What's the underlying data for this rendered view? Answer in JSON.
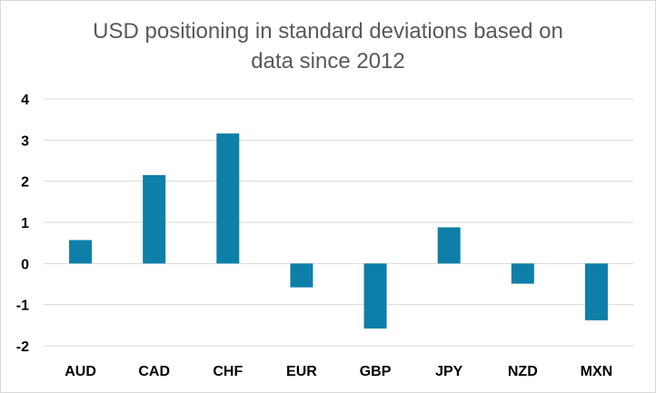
{
  "chart_data": {
    "type": "bar",
    "title_lines": [
      "USD positioning in standard deviations based on",
      "data since 2012"
    ],
    "categories": [
      "AUD",
      "CAD",
      "CHF",
      "EUR",
      "GBP",
      "JPY",
      "NZD",
      "MXN"
    ],
    "values": [
      0.57,
      2.15,
      3.16,
      -0.58,
      -1.58,
      0.88,
      -0.49,
      -1.38
    ],
    "ylim": [
      -2,
      4
    ],
    "yticks": [
      "4",
      "3",
      "2",
      "1",
      "0",
      "-1",
      "-2"
    ],
    "grid": true,
    "bar_color": "#0e7fa8",
    "grid_color": "#d9d9d9"
  }
}
